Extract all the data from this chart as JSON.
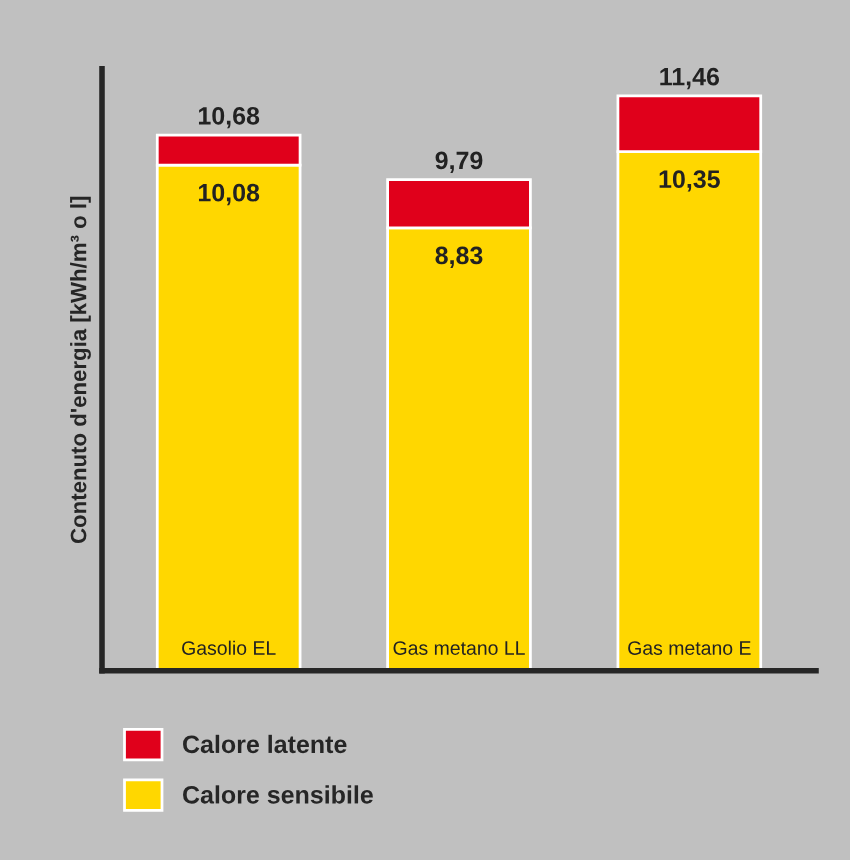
{
  "chart_data": {
    "type": "bar",
    "stacked": true,
    "ylabel": "Contenuto d'energia [kWh/m³ o l]",
    "categories": [
      "Gasolio EL",
      "Gas metano LL",
      "Gas metano E"
    ],
    "series": [
      {
        "name": "Calore sensibile",
        "color": "#ffd700",
        "values": [
          10.08,
          8.83,
          10.35
        ],
        "value_labels": [
          "10,08",
          "8,83",
          "10,35"
        ]
      },
      {
        "name": "Calore latente",
        "color": "#e0001b",
        "values": [
          0.6,
          0.96,
          1.11
        ]
      }
    ],
    "totals": [
      "10,68",
      "9,79",
      "11,46"
    ],
    "ylim": [
      0,
      12
    ],
    "legend": "bottom"
  }
}
